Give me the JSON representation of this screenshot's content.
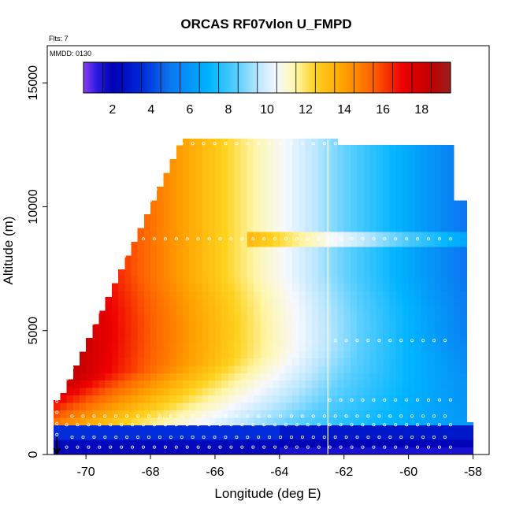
{
  "chart_data": {
    "type": "heatmap",
    "title": "ORCAS RF07vlon U_FMPD",
    "annotations": [
      "Flts: 7",
      "MMDD: 0130"
    ],
    "xlabel": "Longitude (deg E)",
    "ylabel": "Altitude (m)",
    "xlim": [
      -71.2,
      -57.5
    ],
    "ylim": [
      0,
      16500
    ],
    "xticks": [
      -70,
      -68,
      -66,
      -64,
      -62,
      -60,
      -58
    ],
    "yticks": [
      0,
      5000,
      10000,
      15000
    ],
    "colorbar": {
      "range": [
        0.5,
        19.5
      ],
      "ticks": [
        2,
        4,
        6,
        8,
        10,
        12,
        14,
        16,
        18
      ],
      "stops": [
        {
          "v": 0.5,
          "c": "#8c3cf0"
        },
        {
          "v": 1.2,
          "c": "#2a1be0"
        },
        {
          "v": 2.0,
          "c": "#0000b4"
        },
        {
          "v": 3.5,
          "c": "#0028d8"
        },
        {
          "v": 5.0,
          "c": "#0a78f0"
        },
        {
          "v": 7.0,
          "c": "#00b4ff"
        },
        {
          "v": 8.5,
          "c": "#5ccfff"
        },
        {
          "v": 9.5,
          "c": "#b8e6ff"
        },
        {
          "v": 10.5,
          "c": "#f6f8ff"
        },
        {
          "v": 11.5,
          "c": "#fff6a8"
        },
        {
          "v": 12.5,
          "c": "#ffd21e"
        },
        {
          "v": 14.0,
          "c": "#ffa000"
        },
        {
          "v": 15.5,
          "c": "#ff6000"
        },
        {
          "v": 17.0,
          "c": "#ee0000"
        },
        {
          "v": 18.5,
          "c": "#c00000"
        },
        {
          "v": 19.5,
          "c": "#9a1e1e"
        }
      ]
    },
    "grid": false,
    "flight_track_longitude": -62.5,
    "arrow_longitude": -70.9,
    "observation_levels_m": [
      300,
      700,
      1200,
      1550,
      2200,
      4600,
      8700,
      12550
    ]
  }
}
